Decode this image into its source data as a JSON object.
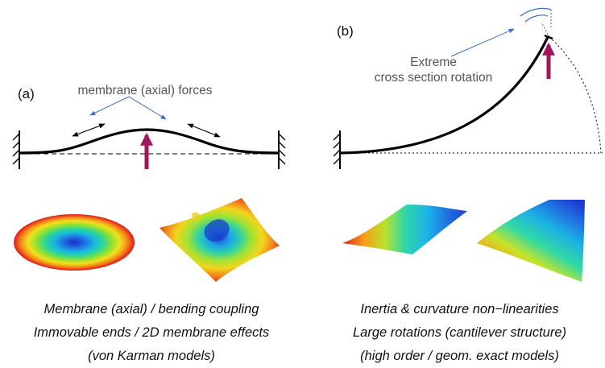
{
  "panel_a": {
    "label": "(a)",
    "annotation": "membrane (axial) forces",
    "caption": [
      "Membrane (axial) / bending coupling",
      "Immovable ends / 2D membrane effects",
      "(von Karman models)"
    ]
  },
  "panel_b": {
    "label": "(b)",
    "annotation_line1": "Extreme",
    "annotation_line2": "cross section rotation",
    "caption": [
      "Inertia & curvature non−linearities",
      "Large rotations (cantilever structure)",
      "(high order / geom. exact models)"
    ]
  },
  "colors": {
    "force_arrow": "#a0155a",
    "annotation_line": "#3a6fc4",
    "label_text": "#555555",
    "beam": "#000000"
  }
}
